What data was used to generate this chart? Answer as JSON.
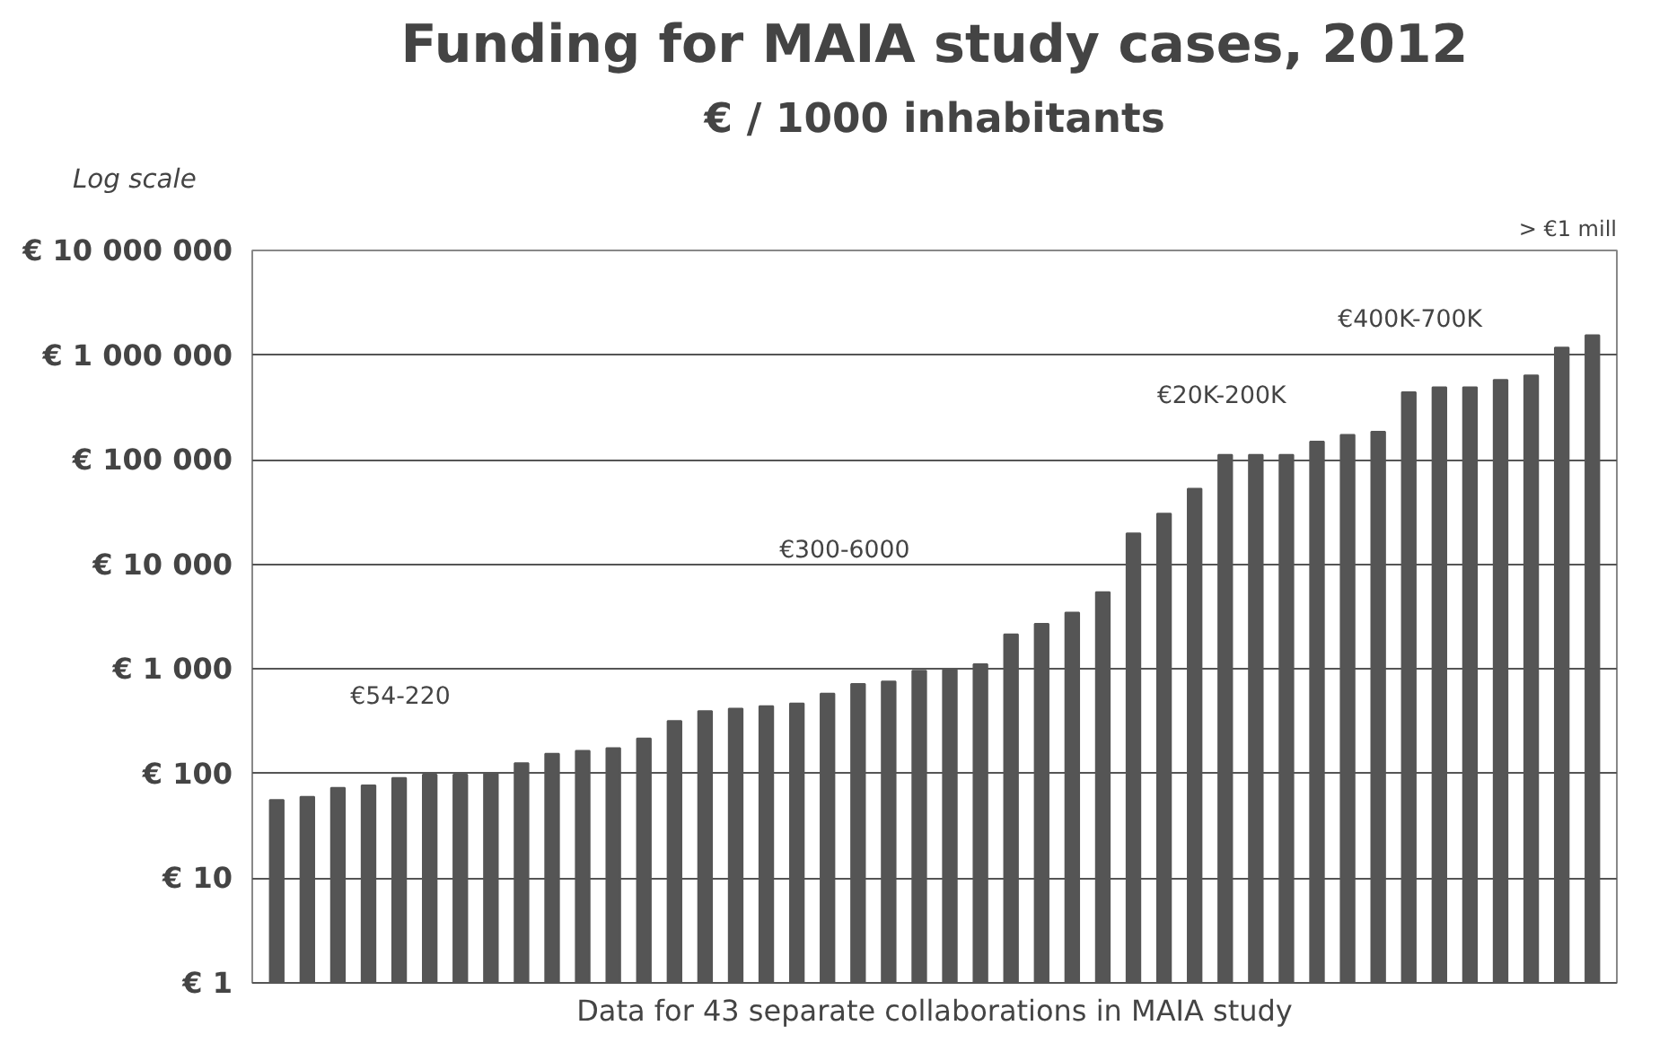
{
  "chart_data": {
    "type": "bar",
    "title": "Funding for MAIA study cases, 2012",
    "subtitle": "€ / 1000 inhabitants",
    "xlabel": "Data for 43 separate collaborations in MAIA study",
    "categories": [
      null,
      null,
      null,
      null,
      null,
      null,
      null,
      null,
      null,
      null,
      null,
      null,
      null,
      null,
      null,
      null,
      null,
      null,
      null,
      null,
      null,
      null,
      null,
      null,
      null,
      null,
      null,
      null,
      null,
      null,
      null,
      null,
      null,
      null,
      null,
      null,
      null,
      null,
      null,
      null,
      null,
      null,
      null,
      null
    ],
    "values": [
      56,
      60,
      73,
      77,
      91,
      98,
      98,
      100,
      126,
      155,
      165,
      175,
      217,
      318,
      396,
      418,
      441,
      467,
      580,
      720,
      760,
      960,
      980,
      1110,
      2140,
      2700,
      3460,
      5420,
      19800,
      30500,
      52700,
      111000,
      111000,
      111000,
      149000,
      173000,
      185000,
      441000,
      492000,
      492000,
      580000,
      638000,
      1180000,
      1550000
    ],
    "color": "#555555",
    "log": true,
    "ylim": [
      1,
      10000000
    ],
    "yticks": [
      {
        "value": 1,
        "label": "€ 1"
      },
      {
        "value": 10,
        "label": "€ 10"
      },
      {
        "value": 100,
        "label": "€ 100"
      },
      {
        "value": 1000,
        "label": "€ 1 000"
      },
      {
        "value": 10000,
        "label": "€ 10 000"
      },
      {
        "value": 100000,
        "label": "€ 100 000"
      },
      {
        "value": 1000000,
        "label": "€ 1 000 000"
      },
      {
        "value": 10000000,
        "label": "€ 10 000 000"
      }
    ],
    "grid": "y",
    "annotations": [
      "Log scale",
      "> €1 mill",
      "€54-220",
      "€300-6000",
      "€20K-200K",
      "€400K-700K"
    ]
  }
}
